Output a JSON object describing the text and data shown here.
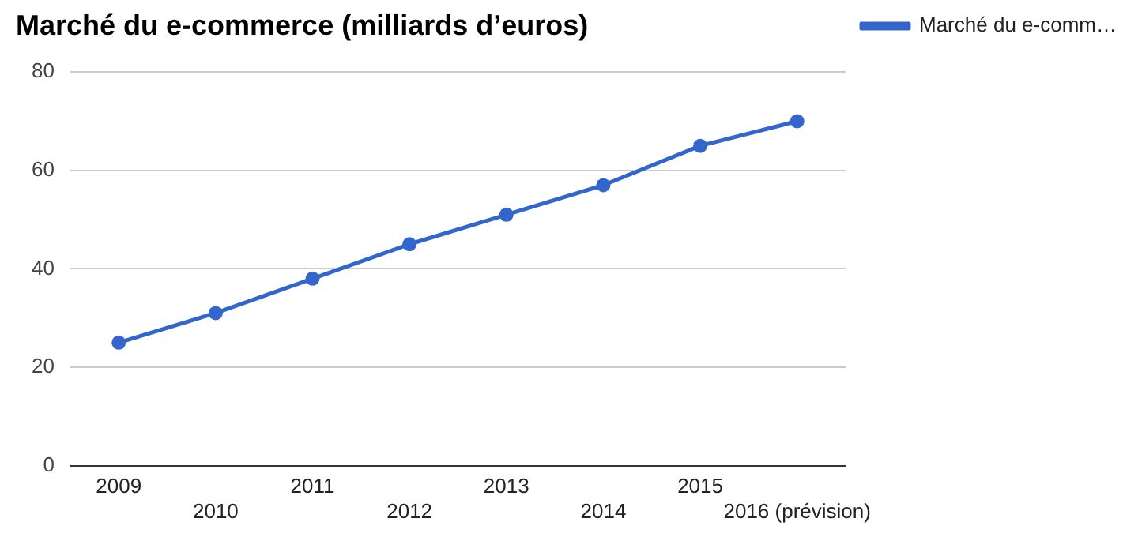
{
  "chart_data": {
    "type": "line",
    "title": "Marché du e-commerce (milliards d’euros)",
    "categories": [
      "2009",
      "2010",
      "2011",
      "2012",
      "2013",
      "2014",
      "2015",
      "2016 (prévision)"
    ],
    "series": [
      {
        "name": "Marché du e-comm…",
        "color": "#3366cc",
        "values": [
          25,
          31,
          38,
          45,
          51,
          57,
          65,
          70
        ]
      }
    ],
    "ylim": [
      0,
      80
    ],
    "yticks": [
      0,
      20,
      40,
      60,
      80
    ],
    "grid": "y",
    "legend": "right",
    "marker": "circle",
    "line_style": "solid"
  }
}
